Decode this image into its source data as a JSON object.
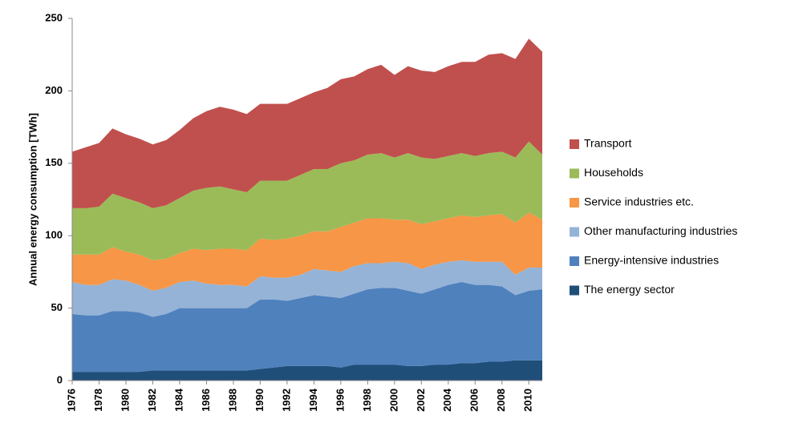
{
  "chart_data": {
    "type": "stacked_area",
    "y_label": "Annual energy consumption [TWh]",
    "x": [
      1976,
      1977,
      1978,
      1979,
      1980,
      1981,
      1982,
      1983,
      1984,
      1985,
      1986,
      1987,
      1988,
      1989,
      1990,
      1991,
      1992,
      1993,
      1994,
      1995,
      1996,
      1997,
      1998,
      1999,
      2000,
      2001,
      2002,
      2003,
      2004,
      2005,
      2006,
      2007,
      2008,
      2009,
      2010,
      2011
    ],
    "xlim": [
      1976,
      2011
    ],
    "xticks": [
      1976,
      1978,
      1980,
      1982,
      1984,
      1986,
      1988,
      1990,
      1992,
      1994,
      1996,
      1998,
      2000,
      2002,
      2004,
      2006,
      2008,
      2010
    ],
    "ylim": [
      0,
      250
    ],
    "yticks": [
      0,
      50,
      100,
      150,
      200,
      250
    ],
    "grid": false,
    "legend": "right",
    "series": [
      {
        "name": "The energy sector",
        "color": "#1f4e79",
        "values": [
          6,
          6,
          6,
          6,
          6,
          6,
          7,
          7,
          7,
          7,
          7,
          7,
          7,
          7,
          8,
          9,
          10,
          10,
          10,
          10,
          9,
          11,
          11,
          11,
          11,
          10,
          10,
          11,
          11,
          12,
          12,
          13,
          13,
          14,
          14,
          14
        ]
      },
      {
        "name": "Energy-intensive industries",
        "color": "#4f81bd",
        "values": [
          40,
          39,
          39,
          42,
          42,
          41,
          37,
          39,
          43,
          43,
          43,
          43,
          43,
          43,
          48,
          47,
          45,
          47,
          49,
          48,
          48,
          49,
          52,
          53,
          53,
          52,
          50,
          52,
          55,
          56,
          54,
          53,
          52,
          45,
          48,
          49
        ]
      },
      {
        "name": "Other manufacturing industries",
        "color": "#95b3d7",
        "values": [
          22,
          21,
          21,
          22,
          21,
          19,
          18,
          18,
          18,
          19,
          17,
          16,
          16,
          15,
          16,
          15,
          16,
          16,
          18,
          18,
          18,
          19,
          18,
          17,
          18,
          19,
          17,
          17,
          16,
          15,
          16,
          16,
          17,
          14,
          16,
          15
        ]
      },
      {
        "name": "Service industries etc.",
        "color": "#f79646",
        "values": [
          19,
          21,
          21,
          22,
          20,
          21,
          21,
          20,
          20,
          22,
          23,
          25,
          25,
          25,
          26,
          26,
          27,
          27,
          26,
          27,
          31,
          30,
          31,
          31,
          29,
          30,
          31,
          30,
          30,
          31,
          31,
          32,
          33,
          36,
          38,
          33
        ]
      },
      {
        "name": "Households",
        "color": "#9bbb59",
        "values": [
          32,
          32,
          33,
          37,
          37,
          36,
          36,
          37,
          38,
          40,
          43,
          43,
          41,
          40,
          40,
          41,
          40,
          42,
          43,
          43,
          44,
          43,
          44,
          45,
          43,
          46,
          46,
          43,
          43,
          43,
          42,
          43,
          43,
          45,
          49,
          45
        ]
      },
      {
        "name": "Transport",
        "color": "#c0504d",
        "values": [
          39,
          42,
          44,
          45,
          44,
          44,
          44,
          45,
          47,
          50,
          53,
          55,
          55,
          54,
          53,
          53,
          53,
          53,
          53,
          56,
          58,
          58,
          59,
          61,
          57,
          60,
          60,
          60,
          62,
          63,
          65,
          68,
          68,
          68,
          71,
          71
        ]
      }
    ]
  }
}
